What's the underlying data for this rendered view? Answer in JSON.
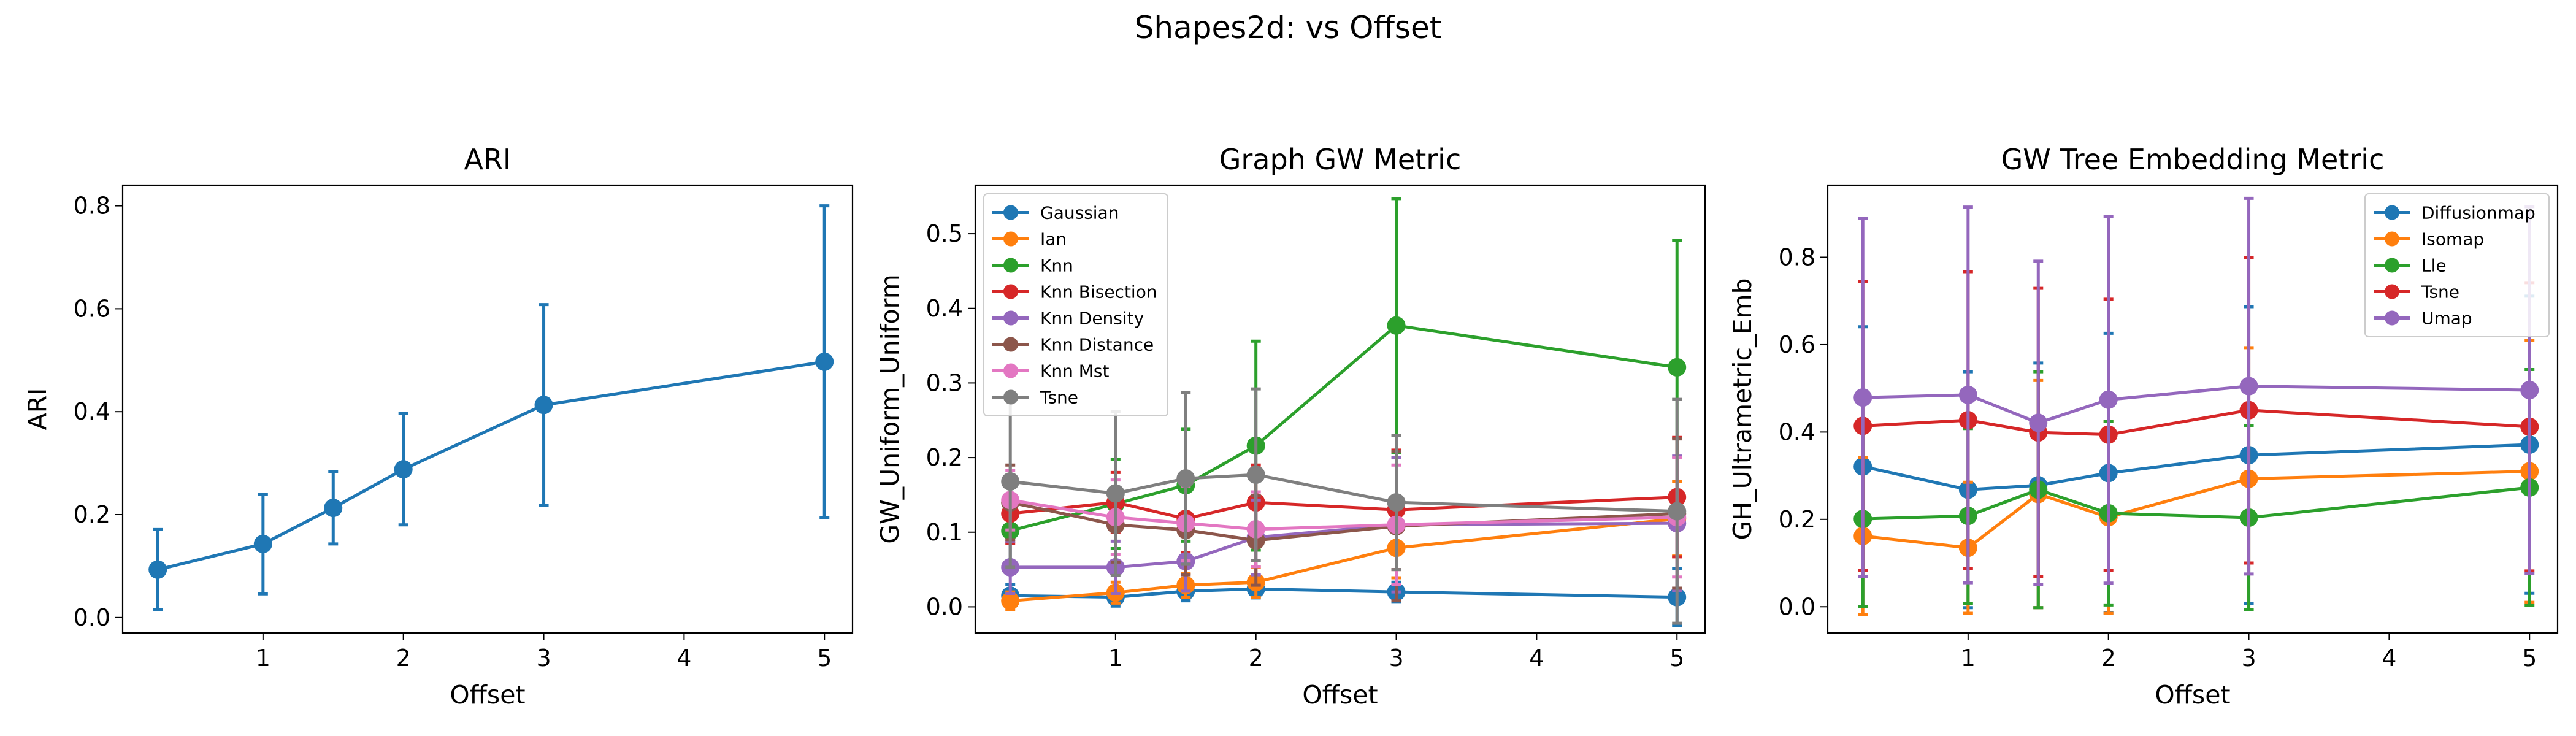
{
  "figure": {
    "suptitle": "Shapes2d: vs Offset"
  },
  "colors": {
    "tab_blue": "#1f77b4",
    "tab_orange": "#ff7f0e",
    "tab_green": "#2ca02c",
    "tab_red": "#d62728",
    "tab_purple": "#9467bd",
    "tab_brown": "#8c564b",
    "tab_pink": "#e377c2",
    "tab_gray": "#7f7f7f"
  },
  "chart_data": [
    {
      "type": "line",
      "title": "ARI",
      "xlabel": "Offset",
      "ylabel": "ARI",
      "x": [
        0.25,
        1,
        1.5,
        2,
        3,
        5
      ],
      "xlim": [
        0.0,
        5.2
      ],
      "ylim": [
        -0.03,
        0.84
      ],
      "xticks": [
        1,
        2,
        3,
        4,
        5
      ],
      "yticks": [
        0.0,
        0.2,
        0.4,
        0.6,
        0.8
      ],
      "legend": null,
      "series": [
        {
          "color": "#1f77b4",
          "values": [
            0.093,
            0.143,
            0.213,
            0.288,
            0.413,
            0.497
          ],
          "err": [
            0.078,
            0.097,
            0.07,
            0.108,
            0.195,
            0.303
          ]
        }
      ]
    },
    {
      "type": "line",
      "title": "Graph GW Metric",
      "xlabel": "Offset",
      "ylabel": "GW_Uniform_Uniform",
      "x": [
        0.25,
        1,
        1.5,
        2,
        3,
        5
      ],
      "xlim": [
        0.0,
        5.2
      ],
      "ylim": [
        -0.035,
        0.565
      ],
      "xticks": [
        1,
        2,
        3,
        4,
        5
      ],
      "yticks": [
        0.0,
        0.1,
        0.2,
        0.3,
        0.4,
        0.5
      ],
      "legend": "upper left",
      "series": [
        {
          "name": "Gaussian",
          "color": "#1f77b4",
          "values": [
            0.015,
            0.013,
            0.021,
            0.024,
            0.02,
            0.013
          ],
          "err": [
            0.015,
            0.012,
            0.013,
            0.012,
            0.013,
            0.038
          ]
        },
        {
          "name": "Ian",
          "color": "#ff7f0e",
          "values": [
            0.008,
            0.019,
            0.029,
            0.033,
            0.079,
            0.118
          ],
          "err": [
            0.012,
            0.014,
            0.016,
            0.02,
            0.04,
            0.05
          ]
        },
        {
          "name": "Knn",
          "color": "#2ca02c",
          "values": [
            0.102,
            0.138,
            0.163,
            0.216,
            0.377,
            0.321
          ],
          "err": [
            0.045,
            0.06,
            0.075,
            0.14,
            0.17,
            0.17
          ]
        },
        {
          "name": "Knn Bisection",
          "color": "#d62728",
          "values": [
            0.125,
            0.14,
            0.118,
            0.14,
            0.13,
            0.147
          ],
          "err": [
            0.04,
            0.04,
            0.045,
            0.05,
            0.08,
            0.08
          ]
        },
        {
          "name": "Knn Density",
          "color": "#9467bd",
          "values": [
            0.053,
            0.053,
            0.061,
            0.093,
            0.11,
            0.112
          ],
          "err": [
            0.035,
            0.035,
            0.04,
            0.05,
            0.09,
            0.09
          ]
        },
        {
          "name": "Knn Distance",
          "color": "#8c564b",
          "values": [
            0.14,
            0.11,
            0.103,
            0.089,
            0.108,
            0.125
          ],
          "err": [
            0.05,
            0.05,
            0.06,
            0.06,
            0.1,
            0.1
          ]
        },
        {
          "name": "Knn Mst",
          "color": "#e377c2",
          "values": [
            0.143,
            0.12,
            0.112,
            0.104,
            0.11,
            0.12
          ],
          "err": [
            0.04,
            0.05,
            0.05,
            0.05,
            0.08,
            0.08
          ]
        },
        {
          "name": "Tsne",
          "color": "#7f7f7f",
          "values": [
            0.168,
            0.152,
            0.172,
            0.177,
            0.14,
            0.128
          ],
          "err": [
            0.115,
            0.11,
            0.115,
            0.115,
            0.09,
            0.15
          ]
        }
      ]
    },
    {
      "type": "line",
      "title": "GW Tree Embedding Metric",
      "xlabel": "Offset",
      "ylabel": "GH_Ultrametric_Emb",
      "x": [
        0.25,
        1,
        1.5,
        2,
        3,
        5
      ],
      "xlim": [
        0.0,
        5.2
      ],
      "ylim": [
        -0.06,
        0.965
      ],
      "xticks": [
        1,
        2,
        3,
        4,
        5
      ],
      "yticks": [
        0.0,
        0.2,
        0.4,
        0.6,
        0.8
      ],
      "legend": "upper right",
      "series": [
        {
          "name": "Diffusionmap",
          "color": "#1f77b4",
          "values": [
            0.321,
            0.268,
            0.278,
            0.306,
            0.347,
            0.371
          ],
          "err": [
            0.32,
            0.27,
            0.28,
            0.32,
            0.34,
            0.34
          ]
        },
        {
          "name": "Isomap",
          "color": "#ff7f0e",
          "values": [
            0.162,
            0.135,
            0.258,
            0.205,
            0.293,
            0.31
          ],
          "err": [
            0.18,
            0.15,
            0.26,
            0.22,
            0.3,
            0.3
          ]
        },
        {
          "name": "Lle",
          "color": "#2ca02c",
          "values": [
            0.201,
            0.208,
            0.268,
            0.214,
            0.204,
            0.273
          ],
          "err": [
            0.2,
            0.2,
            0.27,
            0.21,
            0.21,
            0.27
          ]
        },
        {
          "name": "Tsne",
          "color": "#d62728",
          "values": [
            0.414,
            0.427,
            0.399,
            0.394,
            0.45,
            0.412
          ],
          "err": [
            0.33,
            0.34,
            0.33,
            0.31,
            0.35,
            0.33
          ]
        },
        {
          "name": "Umap",
          "color": "#9467bd",
          "values": [
            0.479,
            0.485,
            0.421,
            0.474,
            0.505,
            0.496
          ],
          "err": [
            0.41,
            0.43,
            0.37,
            0.42,
            0.43,
            0.42
          ]
        }
      ]
    }
  ]
}
